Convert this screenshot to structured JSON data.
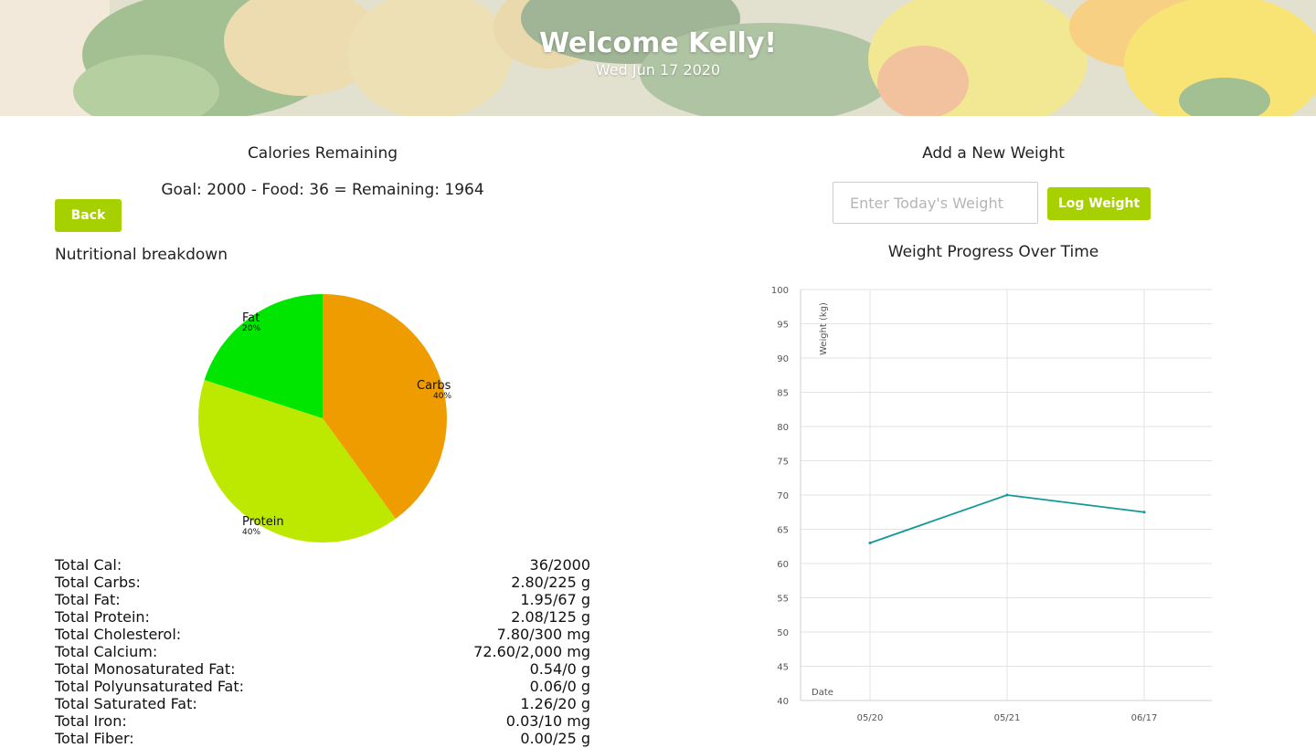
{
  "header": {
    "welcome": "Welcome Kelly!",
    "date": "Wed Jun 17 2020"
  },
  "calories": {
    "heading": "Calories Remaining",
    "summary": "Goal: 2000 - Food: 36 = Remaining: 1964",
    "back_label": "Back"
  },
  "nutrition": {
    "heading": "Nutritional breakdown",
    "totals": [
      {
        "label": "Total Cal:",
        "value": "36/2000"
      },
      {
        "label": "Total Carbs:",
        "value": "2.80/225 g"
      },
      {
        "label": "Total Fat:",
        "value": "1.95/67 g"
      },
      {
        "label": "Total Protein:",
        "value": "2.08/125 g"
      },
      {
        "label": "Total Cholesterol:",
        "value": "7.80/300 mg"
      },
      {
        "label": "Total Calcium:",
        "value": "72.60/2,000 mg"
      },
      {
        "label": "Total Monosaturated Fat:",
        "value": "0.54/0 g"
      },
      {
        "label": "Total Polyunsaturated Fat:",
        "value": "0.06/0 g"
      },
      {
        "label": "Total Saturated Fat:",
        "value": "1.26/20 g"
      },
      {
        "label": "Total Iron:",
        "value": "0.03/10 mg"
      },
      {
        "label": "Total Fiber:",
        "value": "0.00/25 g"
      }
    ]
  },
  "weight": {
    "heading": "Add a New Weight",
    "input_placeholder": "Enter Today's Weight",
    "input_value": "",
    "log_label": "Log Weight",
    "chart_heading": "Weight Progress Over Time"
  },
  "colors": {
    "accent": "#a6d000",
    "carbs": "#ee9c00",
    "protein": "#bde800",
    "fat": "#00e600",
    "line": "#12999a"
  },
  "chart_data": [
    {
      "type": "pie",
      "slices": [
        {
          "label": "Carbs",
          "percent_label": "40%",
          "value": 40,
          "color": "#ee9c00"
        },
        {
          "label": "Protein",
          "percent_label": "40%",
          "value": 40,
          "color": "#bde800"
        },
        {
          "label": "Fat",
          "percent_label": "20%",
          "value": 20,
          "color": "#00e600"
        }
      ]
    },
    {
      "type": "line",
      "title": "Weight Progress Over Time",
      "xlabel": "Date",
      "ylabel": "Weight (kg)",
      "categories": [
        "05/20",
        "05/21",
        "06/17"
      ],
      "series": [
        {
          "values": [
            63,
            70,
            67.5
          ]
        }
      ],
      "ylim": [
        40,
        100
      ],
      "yticks": [
        40,
        45,
        50,
        55,
        60,
        65,
        70,
        75,
        80,
        85,
        90,
        95,
        100
      ],
      "grid": true
    }
  ]
}
